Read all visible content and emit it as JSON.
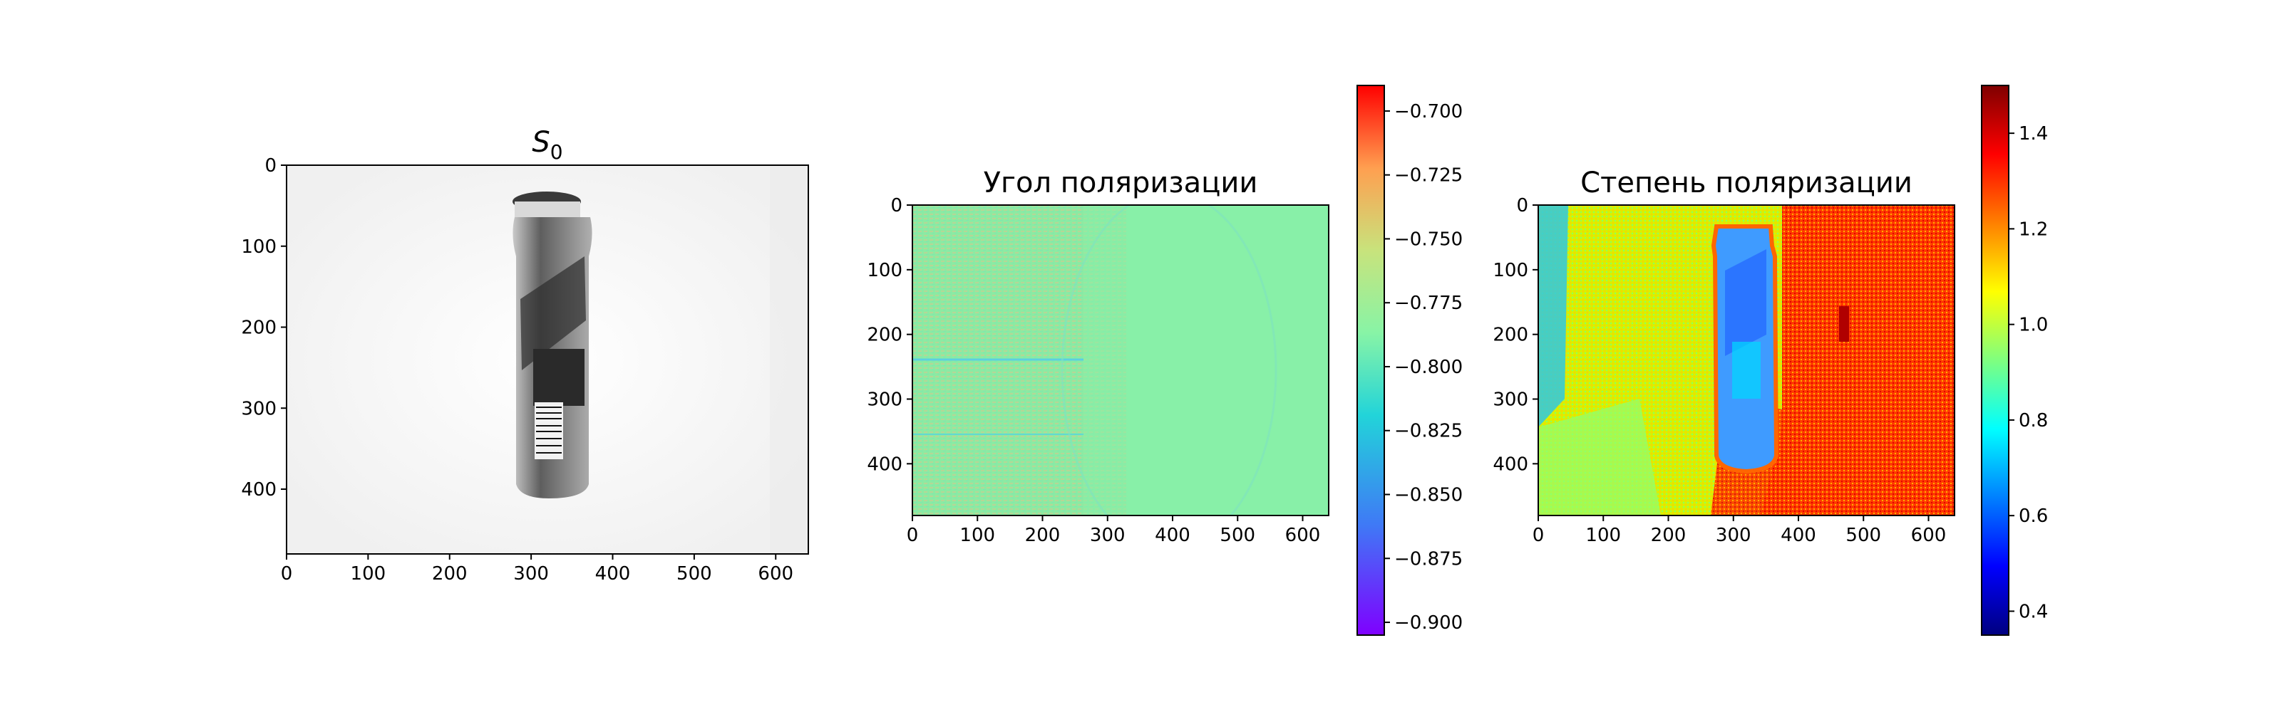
{
  "chart_data": [
    {
      "type": "heatmap",
      "title_base": "S",
      "title_sub": "0",
      "x_ticks": [
        0,
        100,
        200,
        300,
        400,
        500,
        600
      ],
      "y_ticks": [
        0,
        100,
        200,
        300,
        400
      ],
      "xlim": [
        0,
        640
      ],
      "ylim": [
        480,
        0
      ],
      "colormap": "gray",
      "content": "grayscale intensity image of a bottle on white background, bottle centered near x=320 spanning y=50-420"
    },
    {
      "type": "heatmap",
      "title": "Угол поляризации",
      "x_ticks": [
        0,
        100,
        200,
        300,
        400,
        500,
        600
      ],
      "y_ticks": [
        0,
        100,
        200,
        300,
        400
      ],
      "xlim": [
        0,
        640
      ],
      "ylim": [
        480,
        0
      ],
      "colormap": "rainbow",
      "colorbar": {
        "range": [
          -0.905,
          -0.69
        ],
        "ticks": [
          -0.9,
          -0.875,
          -0.85,
          -0.825,
          -0.8,
          -0.775,
          -0.75,
          -0.725,
          -0.7
        ],
        "tick_labels": [
          "−0.900",
          "−0.875",
          "−0.850",
          "−0.825",
          "−0.800",
          "−0.775",
          "−0.750",
          "−0.725",
          "−0.700"
        ]
      },
      "content": "nearly uniform field around -0.78 with noisy red streaks on left half"
    },
    {
      "type": "heatmap",
      "title": "Степень поляризации",
      "x_ticks": [
        0,
        100,
        200,
        300,
        400,
        500,
        600
      ],
      "y_ticks": [
        0,
        100,
        200,
        300,
        400
      ],
      "xlim": [
        0,
        640
      ],
      "ylim": [
        480,
        0
      ],
      "colormap": "jet",
      "colorbar": {
        "range": [
          0.35,
          1.5
        ],
        "ticks": [
          0.4,
          0.6,
          0.8,
          1.0,
          1.2,
          1.4
        ],
        "tick_labels": [
          "0.4",
          "0.6",
          "0.8",
          "1.0",
          "1.2",
          "1.4"
        ]
      },
      "content": "degree of polarization: bottle blue/cyan, right background red, left background yellow-green"
    }
  ]
}
